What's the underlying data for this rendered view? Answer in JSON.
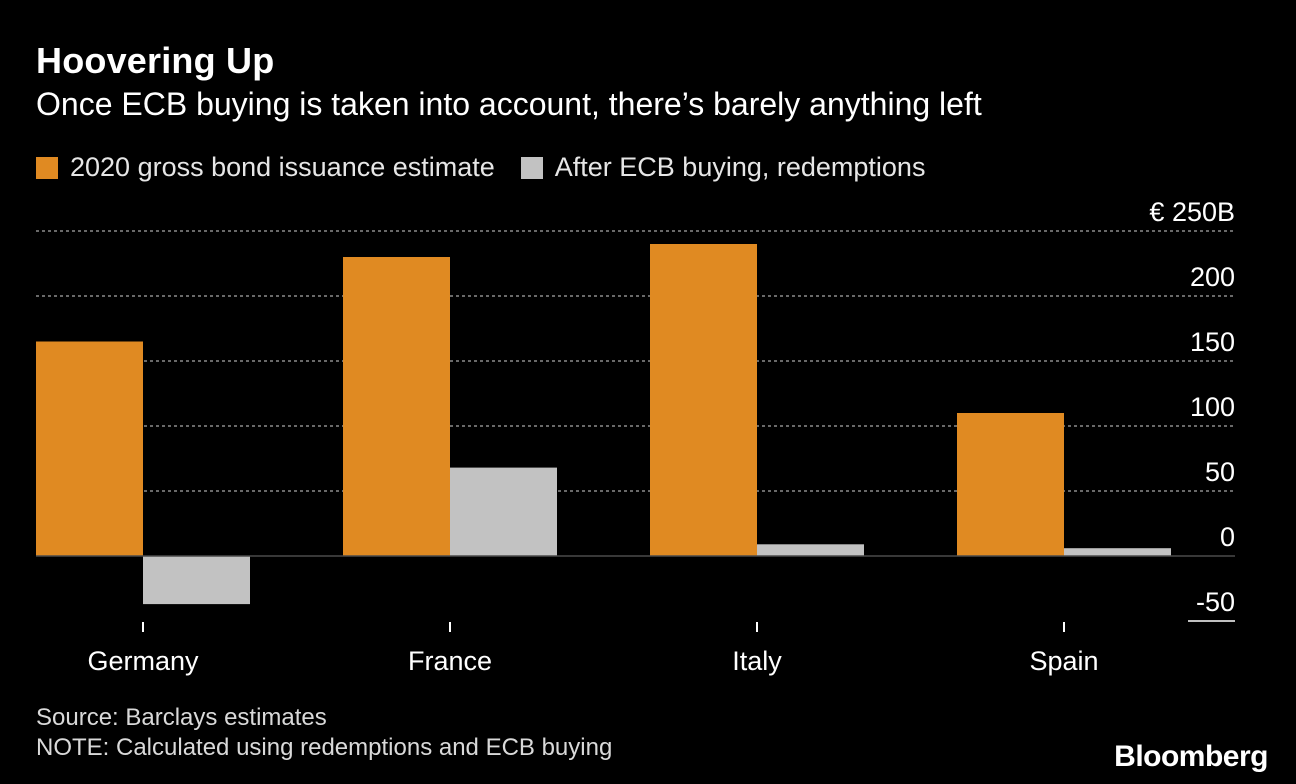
{
  "title": "Hoovering Up",
  "subtitle": "Once ECB buying is taken into account, there’s barely anything left",
  "colors": {
    "issuance": "#E08A22",
    "after_ecb": "#C2C2C2",
    "background": "#000000",
    "grid": "#8c8c8c"
  },
  "chart_data": {
    "type": "bar",
    "categories": [
      "Germany",
      "France",
      "Italy",
      "Spain"
    ],
    "series": [
      {
        "name": "2020 gross bond issuance estimate",
        "values": [
          165,
          230,
          240,
          110
        ]
      },
      {
        "name": "After ECB buying, redemptions",
        "values": [
          -37,
          68,
          9,
          6
        ]
      }
    ],
    "y_ticks": [
      {
        "value": 250,
        "label": "€ 250B"
      },
      {
        "value": 200,
        "label": "200"
      },
      {
        "value": 150,
        "label": "150"
      },
      {
        "value": 100,
        "label": "100"
      },
      {
        "value": 50,
        "label": "50"
      },
      {
        "value": 0,
        "label": "0"
      },
      {
        "value": -50,
        "label": "-50"
      }
    ],
    "ylim": [
      -50,
      250
    ],
    "legend_position": "top-left",
    "grid": true
  },
  "footer": {
    "source": "Source: Barclays estimates",
    "note": "NOTE: Calculated using redemptions and ECB buying",
    "brand": "Bloomberg"
  }
}
